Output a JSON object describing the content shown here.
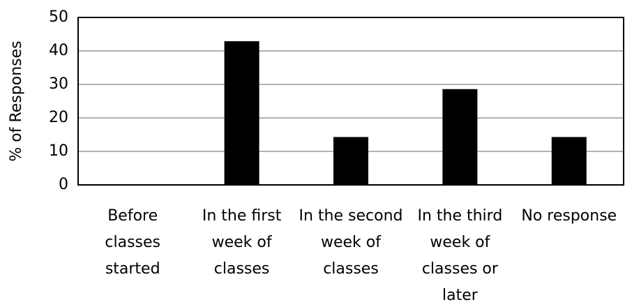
{
  "chart_data": {
    "type": "bar",
    "ylabel": "% of Responses",
    "categories": [
      "Before classes started",
      "In the first week of classes",
      "In the second week of classes",
      "In the third week of classes or later",
      "No response"
    ],
    "values": [
      0,
      42.9,
      14.3,
      28.6,
      14.3
    ],
    "color": "#000000",
    "ylim": [
      0,
      50
    ],
    "yticks": [
      0,
      10,
      20,
      30,
      40,
      50
    ],
    "grid": true
  }
}
